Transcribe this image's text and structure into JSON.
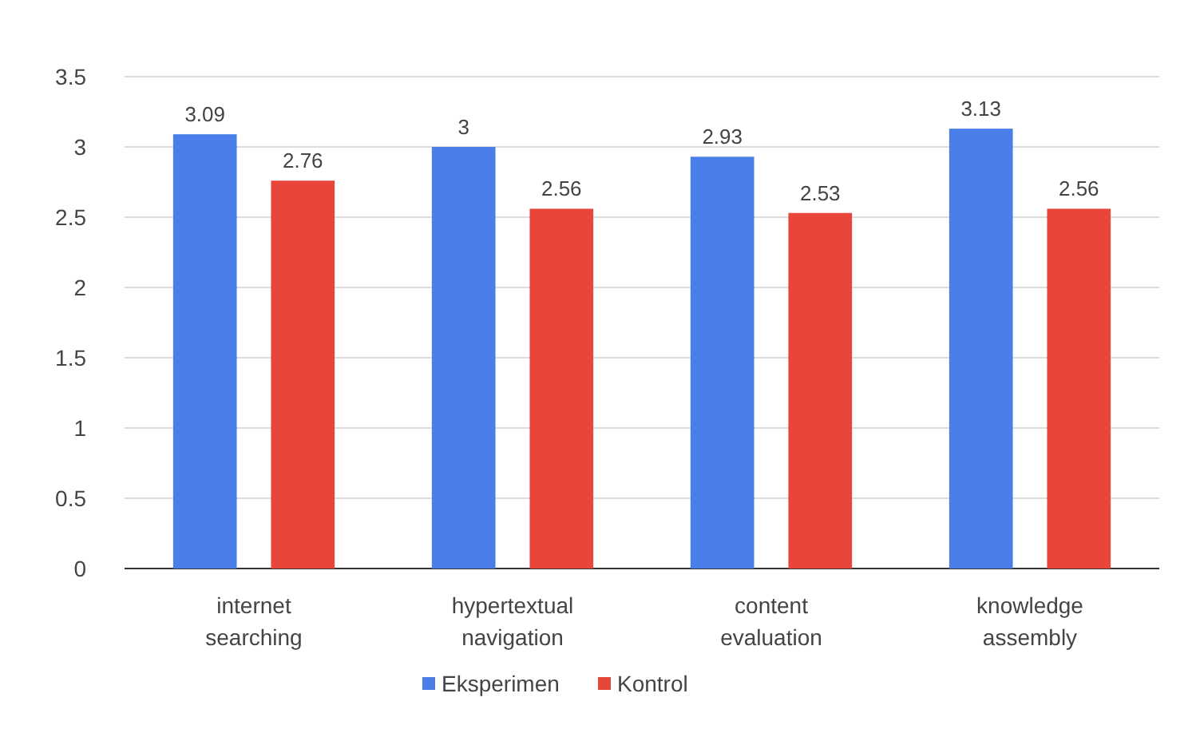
{
  "chart_data": {
    "type": "bar",
    "categories": [
      "internet searching",
      "hypertextual navigation",
      "content evaluation",
      "knowledge assembly"
    ],
    "series": [
      {
        "name": "Eksperimen",
        "color": "#4a7ee8",
        "values": [
          3.09,
          3,
          2.93,
          3.13
        ]
      },
      {
        "name": "Kontrol",
        "color": "#e8463a",
        "values": [
          2.76,
          2.56,
          2.53,
          2.56
        ]
      }
    ],
    "ylim": [
      0,
      3.5
    ],
    "yticks": [
      0,
      0.5,
      1,
      1.5,
      2,
      2.5,
      3,
      3.5
    ],
    "grid": "y",
    "data_labels": true,
    "legend": "bottom"
  }
}
